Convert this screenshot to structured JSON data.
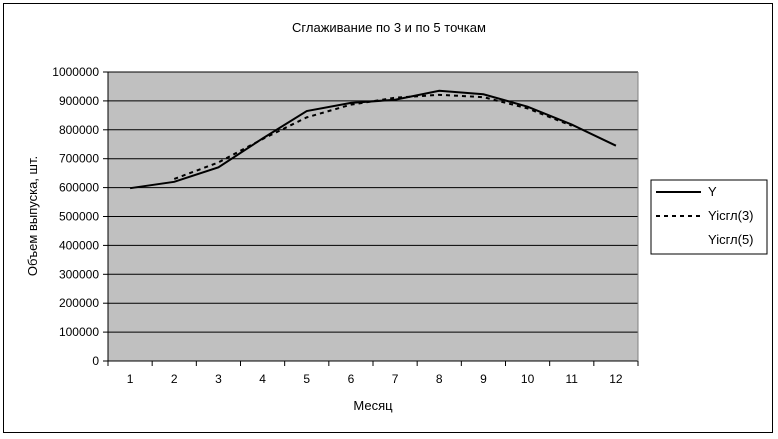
{
  "chart_data": {
    "type": "line",
    "title": "Сглаживание по 3 и по 5 точкам",
    "xlabel": "Месяц",
    "ylabel": "Объем выпуска, шт.",
    "categories": [
      "1",
      "2",
      "3",
      "4",
      "5",
      "6",
      "7",
      "8",
      "9",
      "10",
      "11",
      "12"
    ],
    "ylim": [
      0,
      1000000
    ],
    "yticks": [
      "0",
      "100000",
      "200000",
      "300000",
      "400000",
      "500000",
      "600000",
      "700000",
      "800000",
      "900000",
      "1000000"
    ],
    "series": [
      {
        "name": "Y",
        "style": "solid",
        "values": [
          598000,
          620000,
          670000,
          770000,
          865000,
          893000,
          904000,
          935000,
          923000,
          880000,
          818000,
          745000
        ]
      },
      {
        "name": "Yiсгл(3)",
        "style": "dotted",
        "values": [
          null,
          630000,
          687000,
          768000,
          843000,
          887000,
          911000,
          921000,
          913000,
          874000,
          814000,
          null
        ]
      },
      {
        "name": "Yiсгл(5)",
        "style": "none",
        "values": [
          null,
          null,
          null,
          null,
          null,
          null,
          null,
          null,
          null,
          null,
          null,
          null
        ]
      }
    ],
    "grid": true,
    "plot_background": "#c0c0c0",
    "legend_position": "right"
  }
}
